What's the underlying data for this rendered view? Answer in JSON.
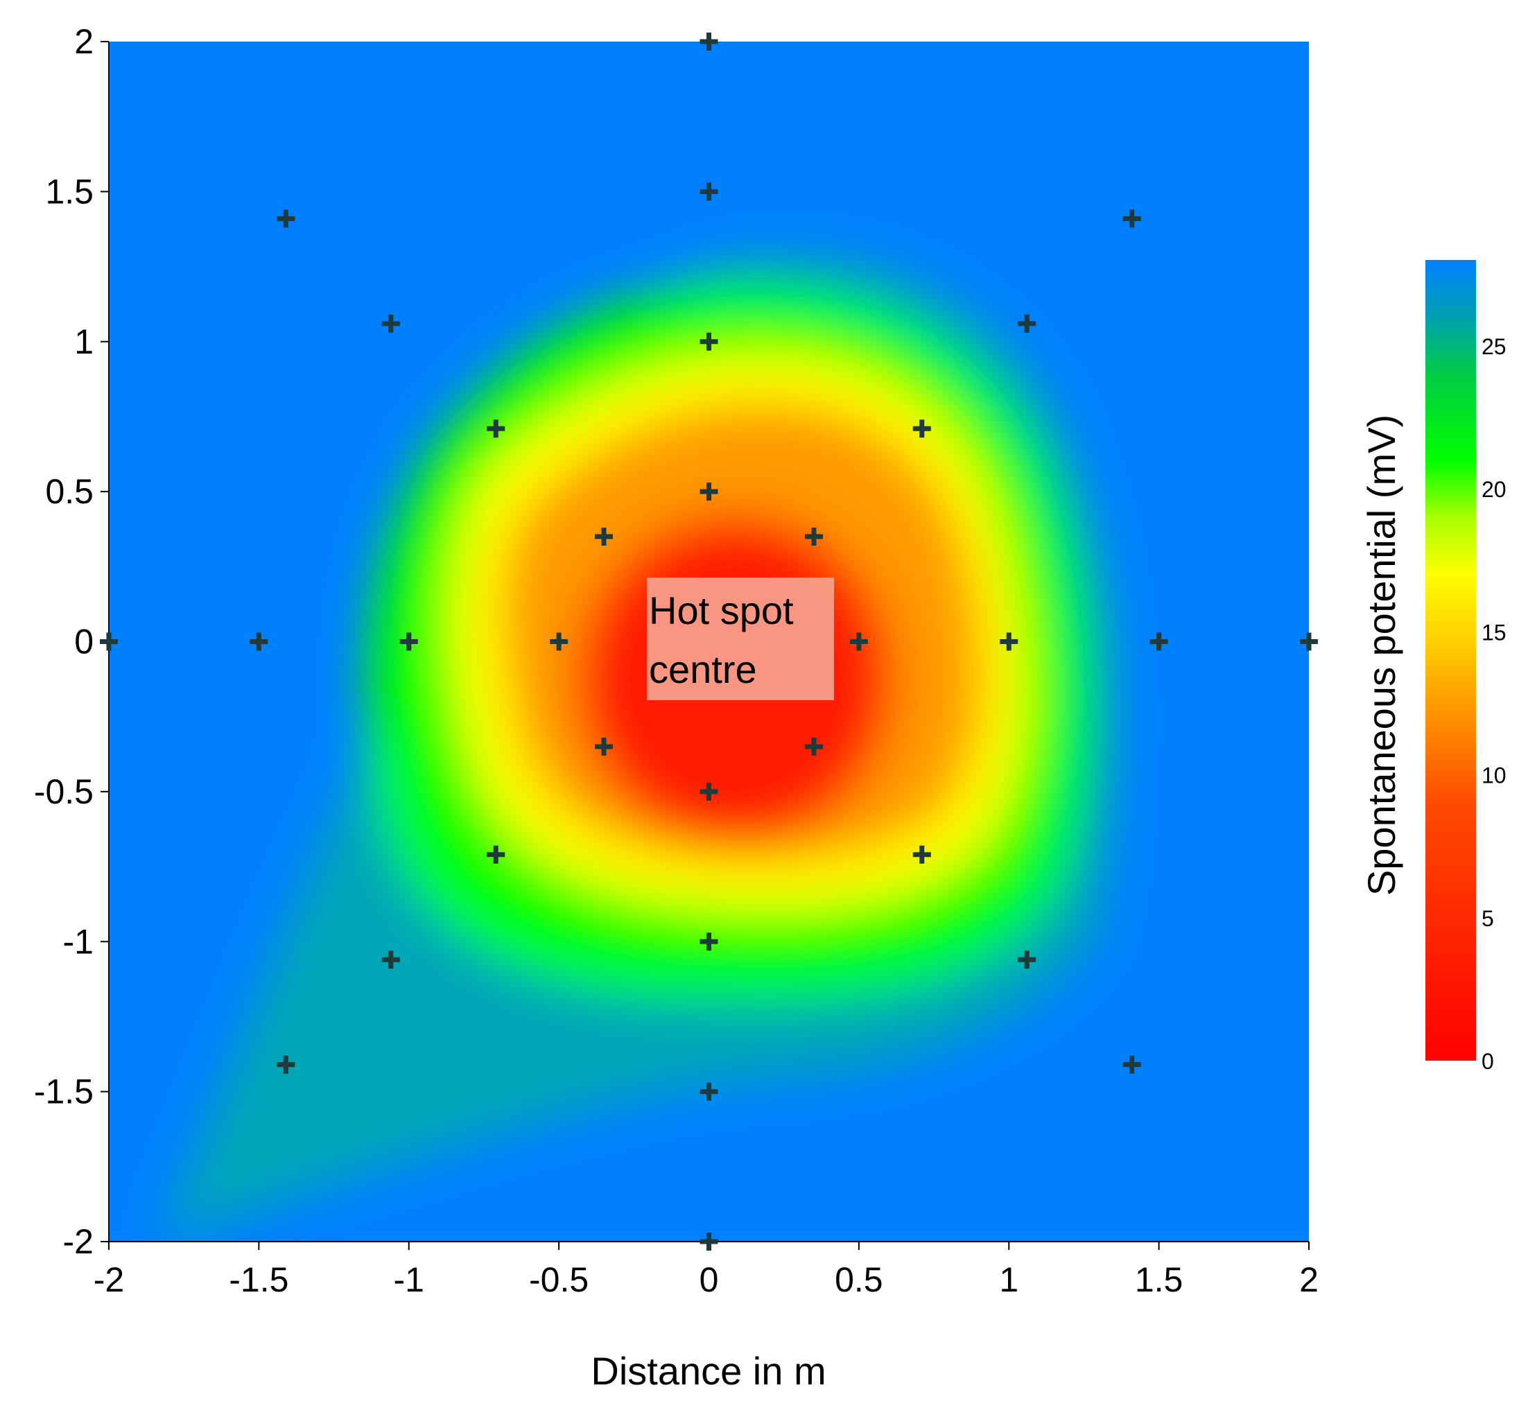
{
  "chart_data": {
    "type": "heatmap",
    "title": "",
    "xlabel": "Distance in m",
    "ylabel": "",
    "xlim": [
      -2,
      2
    ],
    "ylim": [
      -2,
      2
    ],
    "x_ticks": [
      "-2",
      "-1.5",
      "-1",
      "-0.5",
      "0",
      "0.5",
      "1",
      "1.5",
      "2"
    ],
    "y_ticks": [
      "2",
      "1.5",
      "1",
      "0.5",
      "0",
      "-0.5",
      "-1",
      "-1.5",
      "-2"
    ],
    "colorbar": {
      "label": "Spontaneous potential (mV)",
      "range": [
        0,
        28
      ],
      "ticks": [
        "0",
        "5",
        "10",
        "15",
        "20",
        "25"
      ],
      "colormap": [
        {
          "value": 0,
          "color": "#ff0000"
        },
        {
          "value": 9,
          "color": "#ff4a00"
        },
        {
          "value": 14,
          "color": "#ffbf00"
        },
        {
          "value": 17,
          "color": "#ffff00"
        },
        {
          "value": 19,
          "color": "#a8ff00"
        },
        {
          "value": 21,
          "color": "#00ff00"
        },
        {
          "value": 24,
          "color": "#00cc44"
        },
        {
          "value": 26,
          "color": "#00a0b0"
        },
        {
          "value": 28,
          "color": "#0080ff"
        }
      ]
    },
    "grid": false,
    "annotation": {
      "text_line1": "Hot spot",
      "text_line2": "centre",
      "x": 0.1,
      "y": 0
    },
    "measurement_points": [
      {
        "x": 0,
        "y": 2
      },
      {
        "x": 0,
        "y": 1.5
      },
      {
        "x": 0,
        "y": 1
      },
      {
        "x": 0,
        "y": 0.5
      },
      {
        "x": 0,
        "y": -0.5
      },
      {
        "x": 0,
        "y": -1
      },
      {
        "x": 0,
        "y": -1.5
      },
      {
        "x": 0,
        "y": -2
      },
      {
        "x": -2,
        "y": 0
      },
      {
        "x": -1.5,
        "y": 0
      },
      {
        "x": -1,
        "y": 0
      },
      {
        "x": -0.5,
        "y": 0
      },
      {
        "x": 0.5,
        "y": 0
      },
      {
        "x": 1,
        "y": 0
      },
      {
        "x": 1.5,
        "y": 0
      },
      {
        "x": 2,
        "y": 0
      },
      {
        "x": -1.41,
        "y": 1.41
      },
      {
        "x": 1.41,
        "y": 1.41
      },
      {
        "x": -1.41,
        "y": -1.41
      },
      {
        "x": 1.41,
        "y": -1.41
      },
      {
        "x": -1.06,
        "y": 1.06
      },
      {
        "x": 1.06,
        "y": 1.06
      },
      {
        "x": -1.06,
        "y": -1.06
      },
      {
        "x": 1.06,
        "y": -1.06
      },
      {
        "x": -0.71,
        "y": 0.71
      },
      {
        "x": 0.71,
        "y": 0.71
      },
      {
        "x": -0.71,
        "y": -0.71
      },
      {
        "x": 0.71,
        "y": -0.71
      },
      {
        "x": -0.35,
        "y": 0.35
      },
      {
        "x": 0.35,
        "y": 0.35
      },
      {
        "x": -0.35,
        "y": -0.35
      },
      {
        "x": 0.35,
        "y": -0.35
      }
    ]
  }
}
